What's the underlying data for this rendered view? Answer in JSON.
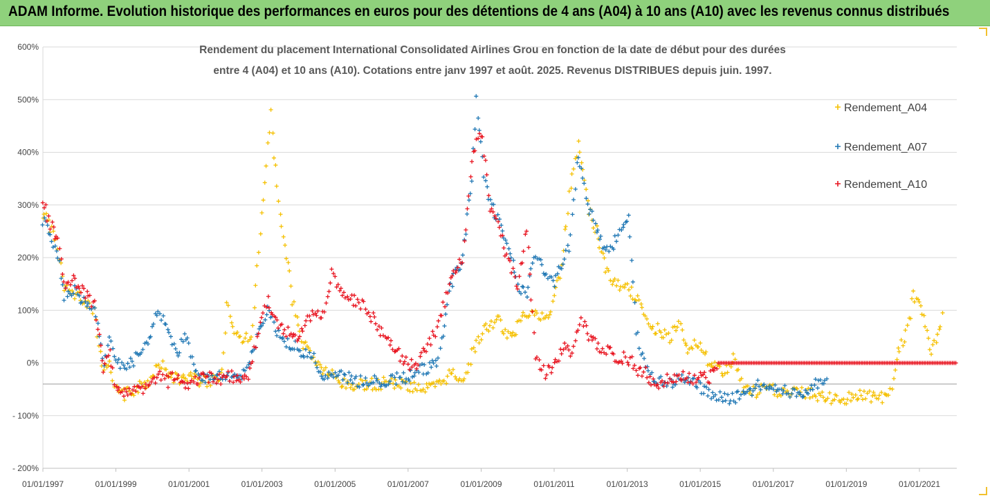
{
  "banner": {
    "title": "ADAM Informe. Evolution historique des performances en euros pour des détentions de 4 ans (A04) à 10 ans (A10) avec les revenus connus distribués",
    "background": "#8fd17c"
  },
  "chart_data": {
    "type": "scatter",
    "title_lines": [
      "Rendement du placement International Consolidated Airlines Grou en fonction de la date de début pour des durées",
      "entre 4 (A04) et 10 ans (A10). Cotations entre janv 1997 et août. 2025. Revenus DISTRIBUES depuis juin. 1997."
    ],
    "xlabel": "",
    "ylabel": "",
    "xlim": [
      "1997-01-01",
      "2022-06-01"
    ],
    "ylim": [
      -200,
      600
    ],
    "x_tick_labels": [
      "01/01/1997",
      "01/01/1999",
      "01/01/2001",
      "01/01/2003",
      "01/01/2005",
      "01/01/2007",
      "01/01/2009",
      "01/01/2011",
      "01/01/2013",
      "01/01/2015",
      "01/01/2017",
      "01/01/2019",
      "01/01/2021"
    ],
    "y_tick_labels": [
      "600%",
      "500%",
      "400%",
      "300%",
      "200%",
      "100%",
      "0%",
      "- 100%",
      "- 200%"
    ],
    "y_tick_values": [
      600,
      500,
      400,
      300,
      200,
      100,
      0,
      -100,
      -200
    ],
    "grid": true,
    "reference_line_y": -40,
    "legend_position": "right",
    "marker": "+",
    "series": [
      {
        "name": "Rendement_A04",
        "color": "#f5c000",
        "points": [
          [
            "1997-01-01",
            285
          ],
          [
            "1997-03-01",
            265
          ],
          [
            "1997-06-01",
            225
          ],
          [
            "1997-08-01",
            140
          ],
          [
            "1997-11-01",
            130
          ],
          [
            "1998-03-01",
            120
          ],
          [
            "1998-06-01",
            100
          ],
          [
            "1998-09-01",
            -20
          ],
          [
            "1998-11-01",
            10
          ],
          [
            "1999-01-01",
            -55
          ],
          [
            "1999-04-01",
            -60
          ],
          [
            "1999-08-01",
            -50
          ],
          [
            "1999-12-01",
            -35
          ],
          [
            "2000-03-01",
            5
          ],
          [
            "2000-06-01",
            -20
          ],
          [
            "2000-09-01",
            -30
          ],
          [
            "2000-12-01",
            -25
          ],
          [
            "2001-03-01",
            -30
          ],
          [
            "2001-06-01",
            -35
          ],
          [
            "2001-09-01",
            -30
          ],
          [
            "2001-12-01",
            -20
          ],
          [
            "2002-01-15",
            110
          ],
          [
            "2002-04-01",
            60
          ],
          [
            "2002-07-01",
            40
          ],
          [
            "2002-10-01",
            60
          ],
          [
            "2002-12-01",
            220
          ],
          [
            "2003-01-15",
            300
          ],
          [
            "2003-03-01",
            410
          ],
          [
            "2003-04-01",
            470
          ],
          [
            "2003-06-01",
            330
          ],
          [
            "2003-08-01",
            250
          ],
          [
            "2003-11-01",
            120
          ],
          [
            "2004-02-01",
            40
          ],
          [
            "2004-05-01",
            20
          ],
          [
            "2004-08-01",
            -10
          ],
          [
            "2004-11-01",
            -20
          ],
          [
            "2005-03-01",
            -40
          ],
          [
            "2005-07-01",
            -45
          ],
          [
            "2005-11-01",
            -40
          ],
          [
            "2006-03-01",
            -40
          ],
          [
            "2006-07-01",
            -35
          ],
          [
            "2006-11-01",
            -40
          ],
          [
            "2007-03-01",
            -45
          ],
          [
            "2007-07-01",
            -50
          ],
          [
            "2007-11-01",
            -45
          ],
          [
            "2008-03-01",
            -20
          ],
          [
            "2008-07-01",
            -30
          ],
          [
            "2008-11-01",
            30
          ],
          [
            "2009-03-01",
            70
          ],
          [
            "2009-07-01",
            80
          ],
          [
            "2009-11-01",
            40
          ],
          [
            "2010-03-01",
            100
          ],
          [
            "2010-07-01",
            90
          ],
          [
            "2010-11-01",
            80
          ],
          [
            "2011-03-01",
            170
          ],
          [
            "2011-06-01",
            320
          ],
          [
            "2011-09-01",
            420
          ],
          [
            "2011-12-01",
            300
          ],
          [
            "2012-03-01",
            250
          ],
          [
            "2012-06-01",
            180
          ],
          [
            "2012-09-01",
            150
          ],
          [
            "2012-12-01",
            145
          ],
          [
            "2013-03-01",
            130
          ],
          [
            "2013-06-01",
            110
          ],
          [
            "2013-09-01",
            70
          ],
          [
            "2013-12-01",
            60
          ],
          [
            "2014-03-01",
            50
          ],
          [
            "2014-06-01",
            80
          ],
          [
            "2014-09-01",
            30
          ],
          [
            "2014-12-01",
            40
          ],
          [
            "2015-03-01",
            10
          ],
          [
            "2015-06-01",
            -10
          ],
          [
            "2015-09-01",
            -20
          ],
          [
            "2015-12-01",
            10
          ],
          [
            "2016-03-01",
            -50
          ],
          [
            "2016-07-01",
            -55
          ],
          [
            "2016-11-01",
            -50
          ],
          [
            "2017-03-01",
            -55
          ],
          [
            "2017-07-01",
            -60
          ],
          [
            "2017-11-01",
            -55
          ],
          [
            "2018-03-01",
            -60
          ],
          [
            "2018-07-01",
            -65
          ],
          [
            "2018-11-01",
            -70
          ],
          [
            "2019-03-01",
            -65
          ],
          [
            "2019-07-01",
            -60
          ],
          [
            "2019-11-01",
            -65
          ],
          [
            "2020-03-01",
            -70
          ],
          [
            "2020-06-01",
            20
          ],
          [
            "2020-09-01",
            60
          ],
          [
            "2020-11-01",
            130
          ],
          [
            "2021-01-01",
            110
          ],
          [
            "2021-03-01",
            80
          ],
          [
            "2021-05-01",
            20
          ],
          [
            "2021-07-01",
            60
          ],
          [
            "2021-09-01",
            100
          ]
        ]
      },
      {
        "name": "Rendement_A07",
        "color": "#1f77b4",
        "points": [
          [
            "1997-01-01",
            270
          ],
          [
            "1997-03-01",
            250
          ],
          [
            "1997-06-01",
            200
          ],
          [
            "1997-08-01",
            130
          ],
          [
            "1997-11-01",
            140
          ],
          [
            "1998-03-01",
            110
          ],
          [
            "1998-06-01",
            110
          ],
          [
            "1998-09-01",
            -10
          ],
          [
            "1998-11-01",
            50
          ],
          [
            "1999-01-01",
            10
          ],
          [
            "1999-04-01",
            -10
          ],
          [
            "1999-08-01",
            10
          ],
          [
            "1999-12-01",
            50
          ],
          [
            "2000-03-01",
            100
          ],
          [
            "2000-06-01",
            60
          ],
          [
            "2000-09-01",
            20
          ],
          [
            "2000-12-01",
            50
          ],
          [
            "2001-03-01",
            -10
          ],
          [
            "2001-06-01",
            -30
          ],
          [
            "2001-09-01",
            -30
          ],
          [
            "2001-12-01",
            -25
          ],
          [
            "2002-03-01",
            -30
          ],
          [
            "2002-06-01",
            -35
          ],
          [
            "2002-09-01",
            0
          ],
          [
            "2002-12-01",
            60
          ],
          [
            "2003-03-01",
            100
          ],
          [
            "2003-06-01",
            60
          ],
          [
            "2003-09-01",
            40
          ],
          [
            "2003-12-01",
            30
          ],
          [
            "2004-03-01",
            20
          ],
          [
            "2004-06-01",
            10
          ],
          [
            "2004-09-01",
            -30
          ],
          [
            "2004-12-01",
            -20
          ],
          [
            "2005-03-01",
            -25
          ],
          [
            "2005-07-01",
            -30
          ],
          [
            "2005-11-01",
            -40
          ],
          [
            "2006-03-01",
            -35
          ],
          [
            "2006-07-01",
            -30
          ],
          [
            "2006-11-01",
            -30
          ],
          [
            "2007-03-01",
            -20
          ],
          [
            "2007-07-01",
            -10
          ],
          [
            "2007-11-01",
            0
          ],
          [
            "2008-03-01",
            150
          ],
          [
            "2008-07-01",
            200
          ],
          [
            "2008-10-01",
            350
          ],
          [
            "2008-11-15",
            500
          ],
          [
            "2009-01-15",
            380
          ],
          [
            "2009-04-01",
            300
          ],
          [
            "2009-07-01",
            270
          ],
          [
            "2009-10-01",
            220
          ],
          [
            "2010-01-01",
            150
          ],
          [
            "2010-04-01",
            130
          ],
          [
            "2010-07-01",
            210
          ],
          [
            "2010-10-01",
            170
          ],
          [
            "2011-01-01",
            150
          ],
          [
            "2011-03-01",
            180
          ],
          [
            "2011-06-01",
            220
          ],
          [
            "2011-09-01",
            400
          ],
          [
            "2011-12-01",
            300
          ],
          [
            "2012-03-01",
            260
          ],
          [
            "2012-06-01",
            210
          ],
          [
            "2012-09-01",
            230
          ],
          [
            "2012-12-01",
            270
          ],
          [
            "2013-01-15",
            285
          ],
          [
            "2013-04-01",
            60
          ],
          [
            "2013-07-01",
            -10
          ],
          [
            "2013-10-01",
            -30
          ],
          [
            "2014-01-01",
            -40
          ],
          [
            "2014-04-01",
            -35
          ],
          [
            "2014-07-01",
            -30
          ],
          [
            "2014-10-01",
            -30
          ],
          [
            "2015-01-01",
            -45
          ],
          [
            "2015-04-01",
            -55
          ],
          [
            "2015-07-01",
            -65
          ],
          [
            "2015-10-01",
            -70
          ],
          [
            "2016-01-01",
            -65
          ],
          [
            "2016-04-01",
            -60
          ],
          [
            "2016-07-01",
            -45
          ],
          [
            "2016-10-01",
            -40
          ],
          [
            "2017-01-01",
            -45
          ],
          [
            "2017-04-01",
            -50
          ],
          [
            "2017-07-01",
            -55
          ],
          [
            "2017-10-01",
            -55
          ],
          [
            "2018-01-01",
            -45
          ],
          [
            "2018-04-01",
            -35
          ],
          [
            "2018-07-01",
            -40
          ]
        ]
      },
      {
        "name": "Rendement_A10",
        "color": "#e8131f",
        "points": [
          [
            "1997-01-01",
            310
          ],
          [
            "1997-03-01",
            270
          ],
          [
            "1997-06-01",
            230
          ],
          [
            "1997-08-01",
            150
          ],
          [
            "1997-11-01",
            160
          ],
          [
            "1998-02-01",
            140
          ],
          [
            "1998-06-01",
            110
          ],
          [
            "1998-09-01",
            -20
          ],
          [
            "1998-11-01",
            20
          ],
          [
            "1999-01-01",
            -50
          ],
          [
            "1999-04-01",
            -60
          ],
          [
            "1999-08-01",
            -55
          ],
          [
            "1999-12-01",
            -45
          ],
          [
            "2000-03-01",
            -25
          ],
          [
            "2000-06-01",
            -35
          ],
          [
            "2000-09-01",
            -20
          ],
          [
            "2000-12-01",
            -40
          ],
          [
            "2001-03-01",
            -30
          ],
          [
            "2001-06-01",
            -30
          ],
          [
            "2001-09-01",
            -25
          ],
          [
            "2001-12-01",
            -30
          ],
          [
            "2002-03-01",
            -25
          ],
          [
            "2002-06-01",
            -30
          ],
          [
            "2002-09-01",
            -20
          ],
          [
            "2002-12-01",
            60
          ],
          [
            "2003-03-01",
            120
          ],
          [
            "2003-06-01",
            80
          ],
          [
            "2003-09-01",
            60
          ],
          [
            "2003-12-01",
            50
          ],
          [
            "2004-03-01",
            70
          ],
          [
            "2004-06-01",
            100
          ],
          [
            "2004-09-01",
            90
          ],
          [
            "2004-12-01",
            170
          ],
          [
            "2005-03-01",
            140
          ],
          [
            "2005-07-01",
            120
          ],
          [
            "2005-11-01",
            110
          ],
          [
            "2006-03-01",
            70
          ],
          [
            "2006-07-01",
            40
          ],
          [
            "2006-11-01",
            10
          ],
          [
            "2007-03-01",
            -10
          ],
          [
            "2007-07-01",
            30
          ],
          [
            "2007-11-01",
            70
          ],
          [
            "2008-03-01",
            160
          ],
          [
            "2008-07-01",
            200
          ],
          [
            "2008-10-01",
            380
          ],
          [
            "2008-11-15",
            420
          ],
          [
            "2009-01-15",
            430
          ],
          [
            "2009-04-01",
            290
          ],
          [
            "2009-07-01",
            260
          ],
          [
            "2009-10-01",
            190
          ],
          [
            "2010-01-01",
            150
          ],
          [
            "2010-04-01",
            250
          ],
          [
            "2010-07-01",
            10
          ],
          [
            "2010-10-01",
            -20
          ],
          [
            "2011-01-01",
            -10
          ],
          [
            "2011-04-01",
            30
          ],
          [
            "2011-07-01",
            20
          ],
          [
            "2011-10-01",
            80
          ],
          [
            "2012-01-01",
            50
          ],
          [
            "2012-04-01",
            30
          ],
          [
            "2012-07-01",
            20
          ],
          [
            "2012-10-01",
            10
          ],
          [
            "2013-01-01",
            10
          ],
          [
            "2013-04-01",
            -10
          ],
          [
            "2013-07-01",
            -20
          ],
          [
            "2013-10-01",
            -40
          ],
          [
            "2014-01-01",
            -35
          ],
          [
            "2014-04-01",
            -30
          ],
          [
            "2014-07-01",
            -25
          ],
          [
            "2014-10-01",
            -30
          ],
          [
            "2015-01-01",
            -25
          ],
          [
            "2015-04-01",
            -30
          ],
          [
            "2015-07-01",
            -25
          ],
          [
            "2015-10-01",
            -20
          ],
          [
            "2015-06-01",
            0
          ],
          [
            "2022-06-01",
            0
          ]
        ],
        "flat_zero_from": "2015-07-01"
      }
    ]
  }
}
